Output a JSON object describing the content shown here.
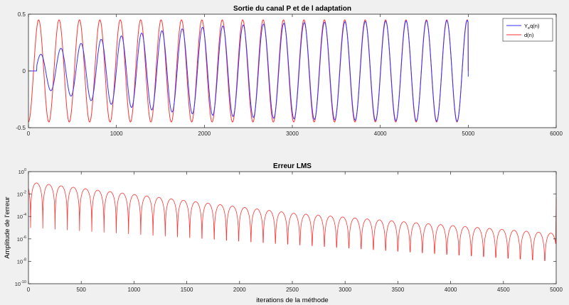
{
  "figure": {
    "background": "#f0f0f0",
    "axes_background": "#ffffff",
    "axis_color": "#262626"
  },
  "chart_data": [
    {
      "type": "line",
      "title": "Sortie du canal P et de l adaptation",
      "xlabel": "",
      "ylabel": "",
      "xlim": [
        0,
        6000
      ],
      "ylim": [
        -0.5,
        0.5
      ],
      "xticks": [
        0,
        1000,
        2000,
        3000,
        4000,
        5000,
        6000
      ],
      "xtick_labels": [
        "0",
        "1000",
        "2000",
        "3000",
        "4000",
        "5000",
        "6000"
      ],
      "yticks": [
        -0.5,
        0,
        0.5
      ],
      "ytick_labels": [
        "-0.5",
        "0",
        "0.5"
      ],
      "grid": false,
      "legend": "top-right",
      "signal": {
        "description": "sinusoid sampled every iteration; about 21.5 cycles over 5000 iterations",
        "n_end": 5000,
        "period": 232,
        "phase_offset": 58
      },
      "series": [
        {
          "name": "Y_eq(n)",
          "legend_main": "Y",
          "legend_sub": "e",
          "legend_rest": "q(n)",
          "color": "#3333ff",
          "amplitude": 0.45,
          "delay": 95,
          "initial_gain": 0.3,
          "convergence_time": 1200,
          "end_value": -0.05
        },
        {
          "name": "d(n)",
          "color": "#ff3333",
          "amplitude": 0.45,
          "end_value": 0.0
        }
      ]
    },
    {
      "type": "line",
      "title": "Erreur LMS",
      "xlabel": "iterations de la méthode",
      "ylabel": "Amplitude de l'erreur",
      "yscale": "log",
      "xlim": [
        0,
        5000
      ],
      "ylim": [
        1e-10,
        1
      ],
      "xticks": [
        0,
        500,
        1000,
        1500,
        2000,
        2500,
        3000,
        3500,
        4000,
        4500,
        5000
      ],
      "xtick_labels": [
        "0",
        "500",
        "1000",
        "1500",
        "2000",
        "2500",
        "3000",
        "3500",
        "4000",
        "4500",
        "5000"
      ],
      "ytick_exponents": [
        0,
        -2,
        -4,
        -6,
        -8,
        -10
      ],
      "ytick_base": "10",
      "grid": false,
      "series": [
        {
          "name": "erreur",
          "color": "#ff3333",
          "envelope_start": 0.12,
          "envelope_mid": 0.0002,
          "envelope_end": 3e-06,
          "dip_minima_start": 1e-05,
          "dip_minima_end": 1e-08,
          "final_spike": 0.005
        }
      ]
    }
  ]
}
